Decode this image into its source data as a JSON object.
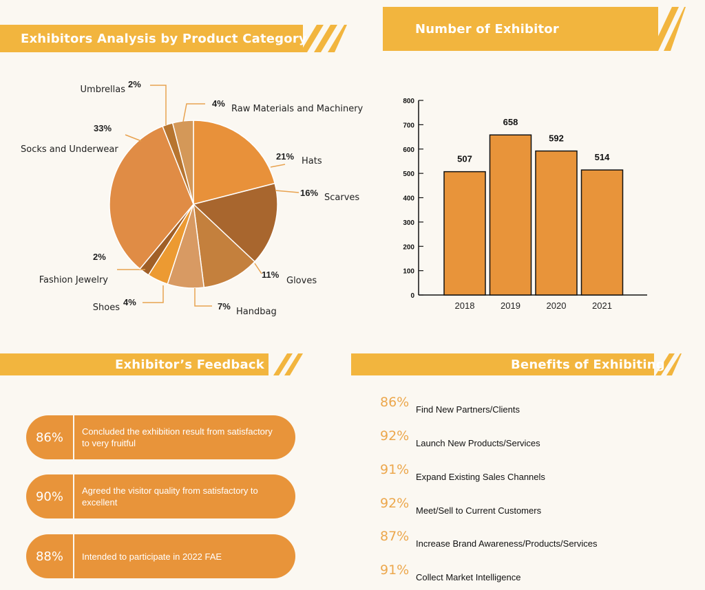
{
  "headers": {
    "pie": "Exhibitors Analysis by Product Category",
    "bar": "Number of Exhibitor",
    "feedback": "Exhibitor’s Feedback",
    "benefits": "Benefits of Exhibiting"
  },
  "colors": {
    "banner": "#f2b53e",
    "pill": "#e8943a",
    "bar_fill": "#e8943a",
    "benefit_pct": "#eca74c"
  },
  "chart_data": [
    {
      "type": "pie",
      "title": "Exhibitors Analysis by Product Category",
      "slices": [
        {
          "label": "Hats",
          "value": 21,
          "pct_label": "21%",
          "color": "#e8913a"
        },
        {
          "label": "Scarves",
          "value": 16,
          "pct_label": "16%",
          "color": "#a8662e"
        },
        {
          "label": "Gloves",
          "value": 11,
          "pct_label": "11%",
          "color": "#c4803d"
        },
        {
          "label": "Handbag",
          "value": 7,
          "pct_label": "7%",
          "color": "#d89a63"
        },
        {
          "label": "Shoes",
          "value": 4,
          "pct_label": "4%",
          "color": "#ec9a32"
        },
        {
          "label": "Fashion Jewelry",
          "value": 2,
          "pct_label": "2%",
          "color": "#a05f27"
        },
        {
          "label": "Socks and Underwear",
          "value": 33,
          "pct_label": "33%",
          "color": "#e08c45"
        },
        {
          "label": "Umbrellas",
          "value": 2,
          "pct_label": "2%",
          "color": "#b77530"
        },
        {
          "label": "Raw Materials and Machinery",
          "value": 4,
          "pct_label": "4%",
          "color": "#d49858"
        }
      ]
    },
    {
      "type": "bar",
      "title": "Number of Exhibitor",
      "categories": [
        "2018",
        "2019",
        "2020",
        "2021"
      ],
      "values": [
        507,
        658,
        592,
        514
      ],
      "value_labels": [
        "507",
        "658",
        "592",
        "514"
      ],
      "ylim": [
        0,
        800
      ],
      "yticks": [
        "0",
        "100",
        "200",
        "300",
        "400",
        "500",
        "600",
        "700",
        "800"
      ]
    }
  ],
  "feedback": [
    {
      "pct": "86%",
      "text": "Concluded the exhibition result from satisfactory to very fruitful"
    },
    {
      "pct": "90%",
      "text": "Agreed the visitor quality from satisfactory to excellent"
    },
    {
      "pct": "88%",
      "text": "Intended to participate in 2022 FAE"
    }
  ],
  "benefits": [
    {
      "pct": "86%",
      "label": "Find New Partners/Clients"
    },
    {
      "pct": "92%",
      "label": "Launch New Products/Services"
    },
    {
      "pct": "91%",
      "label": "Expand Existing Sales Channels"
    },
    {
      "pct": "92%",
      "label": "Meet/Sell to Current Customers"
    },
    {
      "pct": "87%",
      "label": "Increase Brand Awareness/Products/Services"
    },
    {
      "pct": "91%",
      "label": "Collect Market Intelligence"
    }
  ]
}
